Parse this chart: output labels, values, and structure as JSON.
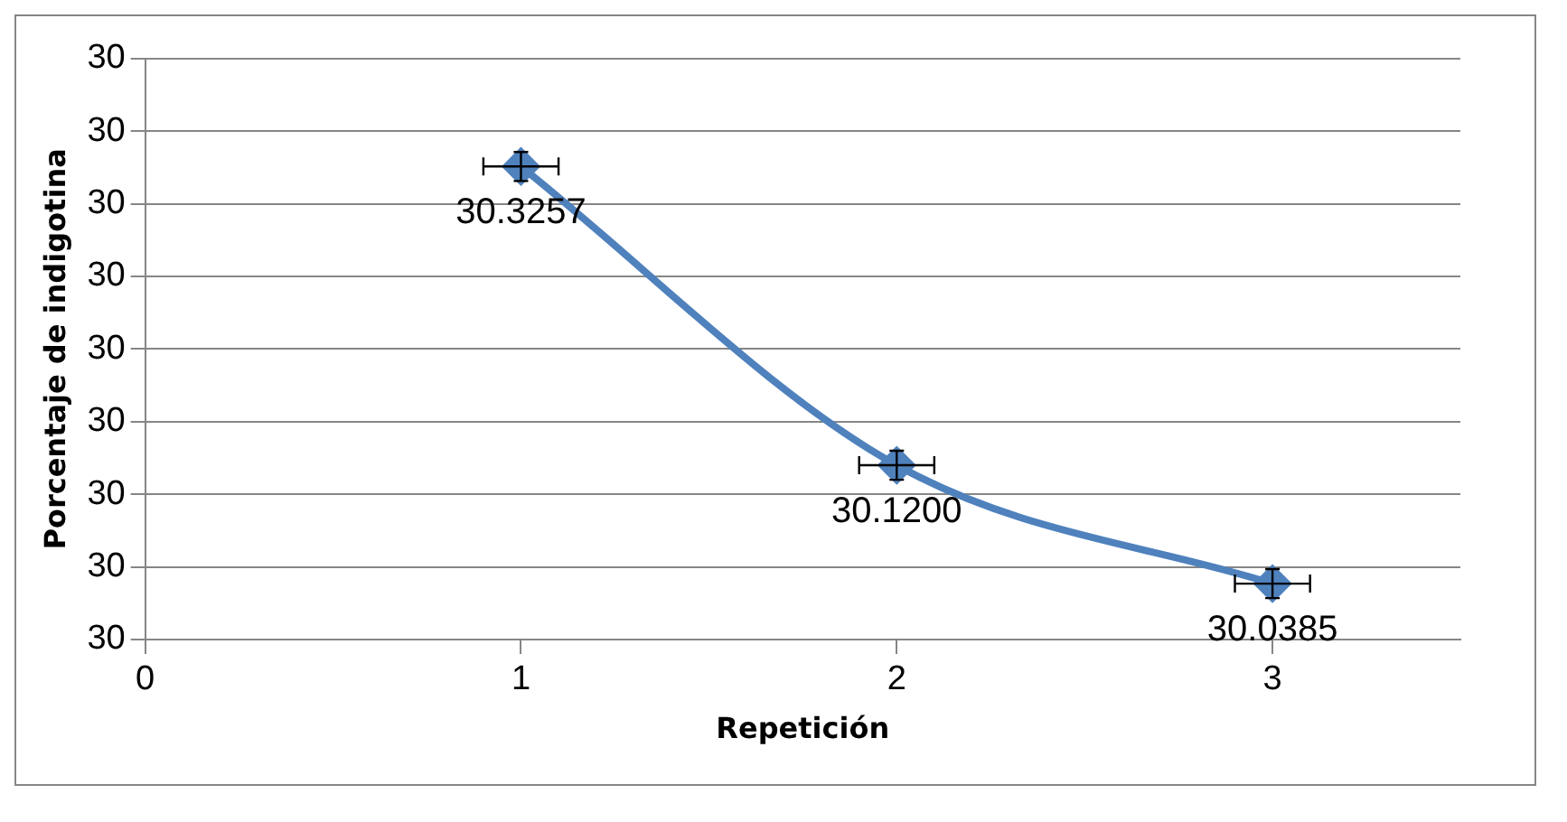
{
  "chart_data": {
    "type": "line",
    "xlabel": "Repetición",
    "ylabel": "Porcentaje de indigotina",
    "x": [
      1,
      2,
      3
    ],
    "series": [
      {
        "color": "#4f81bd",
        "values": [
          30.3257,
          30.12,
          30.0385
        ],
        "value_labels": [
          "30.3257",
          "30.1200",
          "30.0385"
        ],
        "errors": [
          0.01,
          0.01,
          0.01
        ],
        "xerrors": [
          0.1,
          0.1,
          0.1
        ]
      }
    ],
    "xlim": [
      0,
      3.5
    ],
    "xticks": [
      0,
      1,
      2,
      3
    ],
    "ylim": [
      30,
      30.4
    ],
    "yticks": [
      {
        "value": 30,
        "label": "30"
      },
      {
        "value": 30.05,
        "label": "30"
      },
      {
        "value": 30.1,
        "label": "30"
      },
      {
        "value": 30.15,
        "label": "30"
      },
      {
        "value": 30.2,
        "label": "30"
      },
      {
        "value": 30.25,
        "label": "30"
      },
      {
        "value": 30.3,
        "label": "30"
      },
      {
        "value": 30.35,
        "label": "30"
      },
      {
        "value": 30.4,
        "label": "30"
      }
    ],
    "grid": "y",
    "legend": false,
    "marker": "diamond",
    "line_style": "solid"
  }
}
